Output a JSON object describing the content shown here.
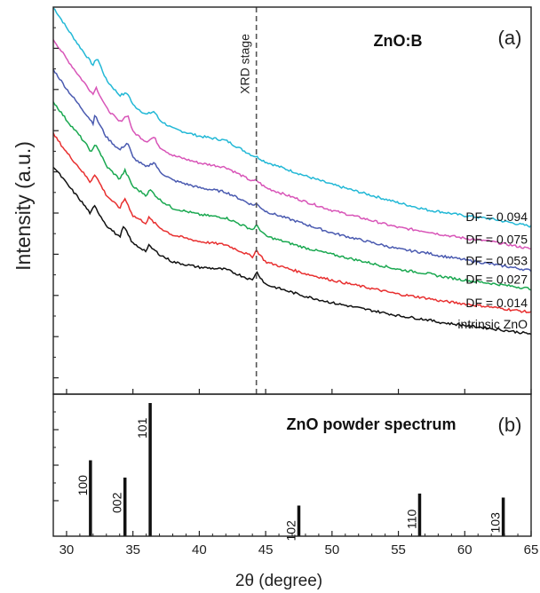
{
  "chart_data": [
    {
      "type": "line",
      "title": "ZnO:B",
      "panel_label": "(a)",
      "xlabel": "2θ (degree)",
      "ylabel": "Intensity (a.u.)",
      "xlim": [
        29,
        65
      ],
      "xticks": [
        30,
        35,
        40,
        45,
        50,
        55,
        60,
        65
      ],
      "y_tick_labels_shown": false,
      "grid": false,
      "legend": "inline labels at right end of curves",
      "reference_line": {
        "x": 44.3,
        "label": "XRD stage",
        "style": "dashed"
      },
      "series": [
        {
          "name": "DF = 0.094",
          "color": "#22b8d6",
          "x": [
            29,
            30,
            31,
            32,
            32.3,
            33,
            34,
            34.6,
            35,
            36,
            36.6,
            37,
            38,
            40,
            42,
            44,
            44.3,
            45,
            48,
            50,
            55,
            57.3,
            58,
            60,
            62,
            65
          ],
          "y": [
            3.6,
            3.41,
            3.23,
            3.06,
            3.13,
            2.92,
            2.78,
            2.8,
            2.69,
            2.6,
            2.63,
            2.55,
            2.47,
            2.4,
            2.36,
            2.22,
            2.21,
            2.16,
            2.03,
            1.95,
            1.78,
            1.71,
            1.7,
            1.66,
            1.63,
            1.56
          ]
        },
        {
          "name": "DF = 0.075",
          "color": "#d855b8",
          "x": [
            29,
            30,
            31,
            32,
            32.2,
            33,
            34,
            34.6,
            35,
            36,
            36.6,
            37,
            38,
            40,
            42,
            44,
            44.3,
            45,
            48,
            50,
            55,
            57.3,
            58,
            60,
            62,
            65
          ],
          "y": [
            3.3,
            3.12,
            2.95,
            2.79,
            2.86,
            2.66,
            2.53,
            2.6,
            2.44,
            2.35,
            2.39,
            2.3,
            2.22,
            2.15,
            2.11,
            1.98,
            1.99,
            1.92,
            1.79,
            1.71,
            1.55,
            1.51,
            1.49,
            1.45,
            1.42,
            1.35
          ]
        },
        {
          "name": "DF = 0.053",
          "color": "#4a5ab0",
          "x": [
            29,
            30,
            31,
            32,
            32.1,
            33,
            34,
            34.6,
            35,
            36,
            36.6,
            37,
            38,
            40,
            42,
            44,
            44.3,
            45,
            48,
            50,
            55,
            57.3,
            58,
            60,
            62,
            65
          ],
          "y": [
            3.02,
            2.84,
            2.68,
            2.52,
            2.6,
            2.39,
            2.27,
            2.34,
            2.2,
            2.11,
            2.16,
            2.07,
            1.99,
            1.92,
            1.88,
            1.76,
            1.77,
            1.7,
            1.58,
            1.5,
            1.35,
            1.31,
            1.29,
            1.25,
            1.21,
            1.15
          ]
        },
        {
          "name": "DF = 0.027",
          "color": "#1aa850",
          "x": [
            29,
            30,
            31,
            31.9,
            32.2,
            33,
            34,
            34.4,
            35,
            36,
            36.3,
            37,
            38,
            40,
            42,
            44,
            44.3,
            45,
            48,
            50,
            55,
            57.3,
            58,
            60,
            62,
            65
          ],
          "y": [
            2.72,
            2.55,
            2.4,
            2.25,
            2.33,
            2.12,
            2.0,
            2.08,
            1.93,
            1.85,
            1.9,
            1.81,
            1.73,
            1.67,
            1.64,
            1.53,
            1.57,
            1.47,
            1.36,
            1.3,
            1.16,
            1.12,
            1.1,
            1.06,
            1.03,
            0.98
          ]
        },
        {
          "name": "DF = 0.014",
          "color": "#e83030",
          "x": [
            29,
            30,
            31,
            31.8,
            32.1,
            33,
            34,
            34.4,
            35,
            36,
            36.2,
            37,
            38,
            40,
            42,
            44,
            44.3,
            45,
            48,
            50,
            55,
            57.3,
            58,
            60,
            62,
            65
          ],
          "y": [
            2.42,
            2.25,
            2.1,
            1.97,
            2.05,
            1.85,
            1.73,
            1.82,
            1.66,
            1.59,
            1.64,
            1.55,
            1.48,
            1.42,
            1.39,
            1.28,
            1.34,
            1.23,
            1.12,
            1.06,
            0.93,
            0.89,
            0.87,
            0.84,
            0.81,
            0.76
          ]
        },
        {
          "name": "intrinsic ZnO",
          "color": "#111111",
          "x": [
            29,
            30,
            31,
            31.8,
            32.1,
            33,
            34,
            34.3,
            35,
            36,
            36.2,
            37,
            38,
            40,
            42,
            44,
            44.3,
            45,
            48,
            50,
            55,
            57.3,
            58,
            60,
            62,
            65
          ],
          "y": [
            2.12,
            1.96,
            1.81,
            1.68,
            1.75,
            1.57,
            1.46,
            1.56,
            1.4,
            1.33,
            1.38,
            1.3,
            1.23,
            1.18,
            1.16,
            1.06,
            1.14,
            1.02,
            0.91,
            0.85,
            0.73,
            0.69,
            0.67,
            0.64,
            0.61,
            0.56
          ]
        }
      ]
    },
    {
      "type": "bar",
      "title": "ZnO powder spectrum",
      "panel_label": "(b)",
      "xlabel": "2θ (degree)",
      "xlim": [
        29,
        65
      ],
      "ylim": [
        0,
        100
      ],
      "xticks": [
        30,
        35,
        40,
        45,
        50,
        55,
        60,
        65
      ],
      "y_tick_labels_shown": false,
      "peaks": [
        {
          "label": "100",
          "x": 31.8,
          "value": 57
        },
        {
          "label": "002",
          "x": 34.4,
          "value": 44
        },
        {
          "label": "101",
          "x": 36.3,
          "value": 100
        },
        {
          "label": "102",
          "x": 47.5,
          "value": 23
        },
        {
          "label": "110",
          "x": 56.6,
          "value": 32
        },
        {
          "label": "103",
          "x": 62.9,
          "value": 29
        }
      ]
    }
  ]
}
